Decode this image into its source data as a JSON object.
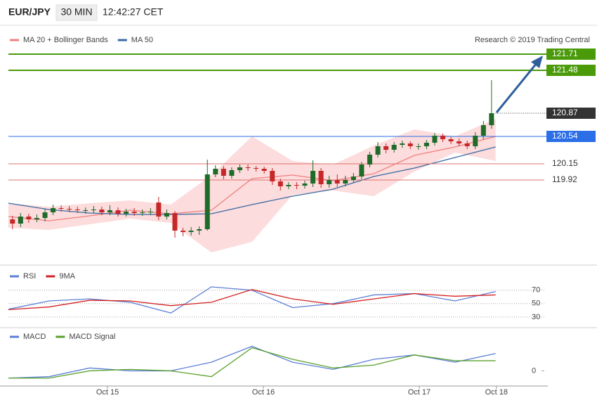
{
  "header": {
    "symbol": "EUR/JPY",
    "interval": "30 MIN",
    "time": "12:42:27 CET"
  },
  "chart_data": [
    {
      "type": "candlestick",
      "credit": "Research © 2019 Trading Central",
      "xlim": [
        0,
        66
      ],
      "ylim": [
        118.74,
        121.92
      ],
      "up_color": "#1e6b2a",
      "down_color": "#c62828",
      "open": [
        119.36,
        119.3,
        119.4,
        119.36,
        119.38,
        119.46,
        119.52,
        119.51,
        119.5,
        119.49,
        119.49,
        119.5,
        119.46,
        119.49,
        119.44,
        119.47,
        119.45,
        119.46,
        119.6,
        119.4,
        119.45,
        119.2,
        119.18,
        119.2,
        119.22,
        120.0,
        120.08,
        119.98,
        120.06,
        120.1,
        120.09,
        120.08,
        120.05,
        119.9,
        119.83,
        119.85,
        119.84,
        119.87,
        120.05,
        119.86,
        119.92,
        119.87,
        119.92,
        119.97,
        120.14,
        120.28,
        120.4,
        120.35,
        120.42,
        120.44,
        120.4,
        120.4,
        120.45,
        120.55,
        120.5,
        120.47,
        120.44,
        120.4,
        120.55,
        120.7
      ],
      "high": [
        119.41,
        119.45,
        119.44,
        119.43,
        119.51,
        119.57,
        119.56,
        119.55,
        119.54,
        119.53,
        119.55,
        119.54,
        119.56,
        119.53,
        119.51,
        119.52,
        119.5,
        119.52,
        119.68,
        119.5,
        119.48,
        119.24,
        119.25,
        119.26,
        120.21,
        120.13,
        120.12,
        120.1,
        120.14,
        120.14,
        120.12,
        120.11,
        120.09,
        119.94,
        119.89,
        119.89,
        119.91,
        120.2,
        120.09,
        119.98,
        120.0,
        119.98,
        120.02,
        120.18,
        120.32,
        120.46,
        120.44,
        120.46,
        120.48,
        120.47,
        120.44,
        120.49,
        120.59,
        120.58,
        120.53,
        120.51,
        120.48,
        120.6,
        120.76,
        121.34
      ],
      "low": [
        119.22,
        119.25,
        119.31,
        119.32,
        119.33,
        119.42,
        119.47,
        119.46,
        119.45,
        119.44,
        119.45,
        119.42,
        119.42,
        119.4,
        119.4,
        119.41,
        119.41,
        119.42,
        119.35,
        119.36,
        119.1,
        119.12,
        119.13,
        119.14,
        119.2,
        119.96,
        119.93,
        119.94,
        120.02,
        120.05,
        120.04,
        120.01,
        119.85,
        119.77,
        119.79,
        119.79,
        119.8,
        119.82,
        119.81,
        119.81,
        119.82,
        119.83,
        119.88,
        119.93,
        120.1,
        120.24,
        120.3,
        120.31,
        120.38,
        120.36,
        120.35,
        120.36,
        120.41,
        120.46,
        120.43,
        120.4,
        120.36,
        120.36,
        120.5,
        120.65
      ],
      "close": [
        119.3,
        119.4,
        119.36,
        119.38,
        119.46,
        119.52,
        119.51,
        119.5,
        119.49,
        119.49,
        119.5,
        119.46,
        119.49,
        119.44,
        119.47,
        119.45,
        119.46,
        119.47,
        119.4,
        119.45,
        119.2,
        119.18,
        119.2,
        119.22,
        120.0,
        120.08,
        119.98,
        120.06,
        120.1,
        120.09,
        120.08,
        120.05,
        119.9,
        119.83,
        119.85,
        119.84,
        119.87,
        120.05,
        119.86,
        119.92,
        119.87,
        119.92,
        119.97,
        120.14,
        120.28,
        120.4,
        120.35,
        120.42,
        120.44,
        120.4,
        120.4,
        120.45,
        120.55,
        120.5,
        120.47,
        120.44,
        120.4,
        120.55,
        120.7,
        120.87
      ],
      "overlay_x": [
        0,
        5,
        10,
        15,
        20,
        25,
        30,
        35,
        40,
        45,
        50,
        55,
        60
      ],
      "bands": {
        "color": "#fbd3d3",
        "upper": [
          119.59,
          119.54,
          119.59,
          119.63,
          119.57,
          119.99,
          120.54,
          120.19,
          120.14,
          120.41,
          120.64,
          120.54,
          120.79
        ],
        "lower": [
          119.24,
          119.21,
          119.29,
          119.37,
          119.31,
          118.89,
          119.04,
          119.71,
          119.77,
          119.69,
          120.04,
          120.31,
          120.19
        ]
      },
      "series": [
        {
          "name": "MA 20 + Bollinger Bands",
          "color": "#f08080",
          "values": [
            119.4,
            119.34,
            119.41,
            119.49,
            119.44,
            119.49,
            119.94,
            119.99,
            119.91,
            120.01,
            120.27,
            120.39,
            120.54
          ]
        },
        {
          "name": "MA 50",
          "color": "#3a6aa3",
          "values": [
            119.59,
            119.5,
            119.45,
            119.43,
            119.43,
            119.44,
            119.57,
            119.69,
            119.79,
            119.97,
            120.09,
            120.24,
            120.39
          ]
        }
      ],
      "levels": [
        {
          "value": 121.71,
          "color": "#4a9a0a",
          "label_box": true
        },
        {
          "value": 121.48,
          "color": "#4a9a0a",
          "label_box": true
        },
        {
          "value": 120.87,
          "color": "#333333",
          "label_box": true
        },
        {
          "value": 120.54,
          "color": "#2a6ee8",
          "label_box": true
        },
        {
          "value": 120.15,
          "color": "#e07070",
          "label_box": false
        },
        {
          "value": 119.92,
          "color": "#e07070",
          "label_box": false
        }
      ]
    },
    {
      "type": "line",
      "xlim": [
        0,
        66
      ],
      "ylim": [
        12,
        96
      ],
      "yticks": [
        70,
        50,
        30
      ],
      "grid": true,
      "x": [
        0,
        5,
        10,
        15,
        20,
        25,
        30,
        35,
        40,
        45,
        50,
        55,
        60
      ],
      "series": [
        {
          "name": "RSI",
          "color": "#5b7fd6",
          "values": [
            41.6,
            54,
            57,
            52,
            36,
            75,
            70,
            44,
            50,
            63,
            65,
            54,
            68
          ]
        },
        {
          "name": "9MA",
          "color": "#d42020",
          "values": [
            41,
            45,
            55,
            54,
            47,
            52,
            71,
            57,
            49,
            57,
            65,
            61,
            63
          ]
        }
      ]
    },
    {
      "type": "line",
      "xlim": [
        0,
        66
      ],
      "ylim": [
        -0.1,
        0.26
      ],
      "yticks": [
        0
      ],
      "xticks": [
        {
          "value": 12.2,
          "label": "Oct 15"
        },
        {
          "value": 31.4,
          "label": "Oct 16"
        },
        {
          "value": 50.6,
          "label": "Oct 17"
        },
        {
          "value": 60.1,
          "label": "Oct 18"
        }
      ],
      "x": [
        0,
        5,
        10,
        15,
        20,
        25,
        30,
        35,
        40,
        45,
        50,
        55,
        60
      ],
      "series": [
        {
          "name": "MACD",
          "color": "#5b7fd6",
          "values": [
            -0.05,
            -0.04,
            0.02,
            0.0,
            0.0,
            0.06,
            0.17,
            0.06,
            0.01,
            0.08,
            0.11,
            0.06,
            0.12
          ]
        },
        {
          "name": "MACD Signal",
          "color": "#5aa02c",
          "values": [
            -0.05,
            -0.05,
            0.0,
            0.01,
            0.0,
            -0.04,
            0.16,
            0.08,
            0.02,
            0.04,
            0.11,
            0.07,
            0.07
          ]
        }
      ]
    }
  ]
}
